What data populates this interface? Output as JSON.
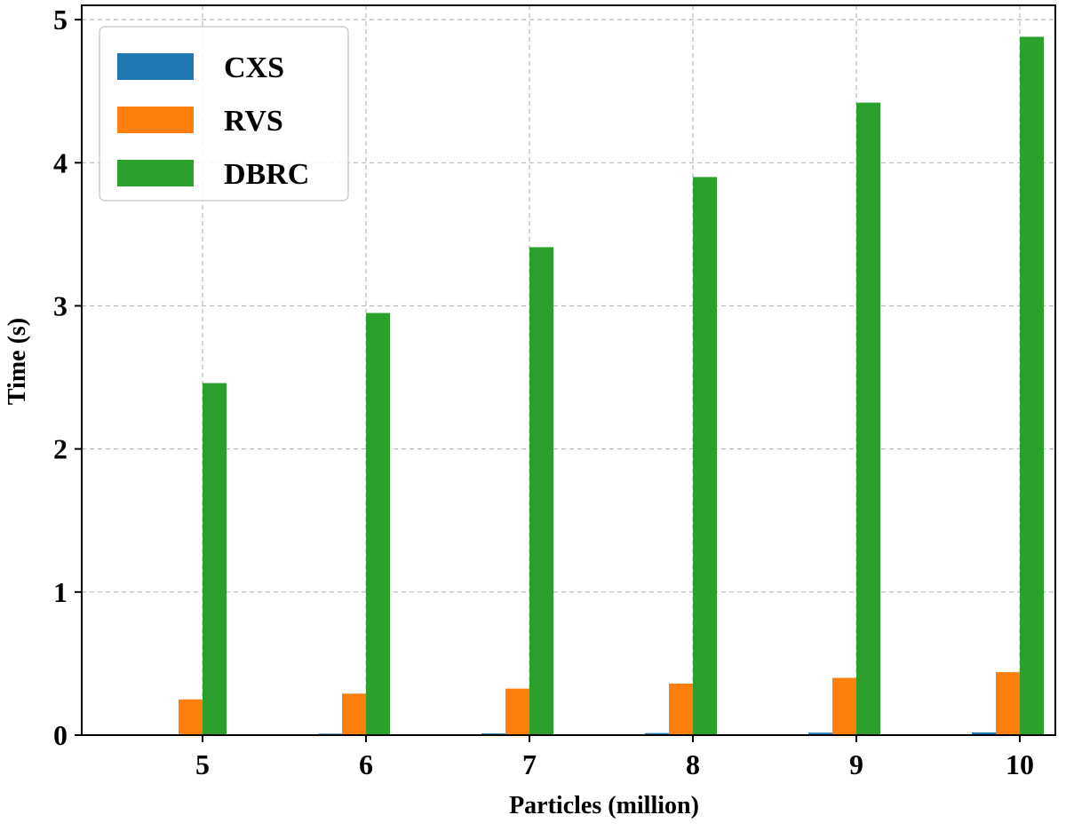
{
  "chart_data": {
    "type": "bar",
    "title": "",
    "xlabel": "Particles (million)",
    "ylabel": "Time (s)",
    "categories": [
      "5",
      "6",
      "7",
      "8",
      "9",
      "10"
    ],
    "series": [
      {
        "name": "CXS",
        "color": "#1f77b4",
        "values": [
          0.005,
          0.01,
          0.012,
          0.014,
          0.017,
          0.019
        ]
      },
      {
        "name": "RVS",
        "color": "#ff7f0e",
        "values": [
          0.25,
          0.29,
          0.325,
          0.36,
          0.4,
          0.44
        ]
      },
      {
        "name": "DBRC",
        "color": "#2ca02c",
        "values": [
          2.46,
          2.95,
          3.41,
          3.9,
          4.42,
          4.88
        ]
      }
    ],
    "ylim": [
      0,
      5.1
    ],
    "yticks": [
      "0",
      "1",
      "2",
      "3",
      "4",
      "5"
    ],
    "grid": true,
    "legend_position": "top-left"
  }
}
